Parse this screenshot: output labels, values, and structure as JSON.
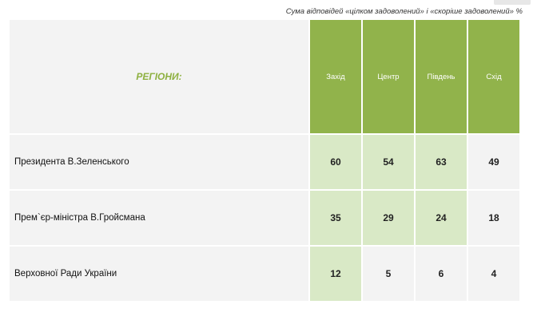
{
  "note": "Сума відповідей «цілком задоволений» і «скоріше задоволений» %",
  "chart_data": {
    "type": "table",
    "corner_label": "РЕГІОНИ:",
    "columns": [
      "Захід",
      "Центр",
      "Південь",
      "Схід"
    ],
    "rows": [
      {
        "label": "Президента В.Зеленського",
        "values": [
          60,
          54,
          63,
          49
        ]
      },
      {
        "label": "Прем`єр-міністра В.Гройсмана",
        "values": [
          35,
          29,
          24,
          18
        ]
      },
      {
        "label": "Верховної Ради України",
        "values": [
          12,
          5,
          6,
          4
        ]
      }
    ],
    "colors": {
      "header": "#91b34b",
      "highlight": "#d9e9c6",
      "neutral": "#f3f3f3",
      "title": "#8db03f"
    }
  }
}
